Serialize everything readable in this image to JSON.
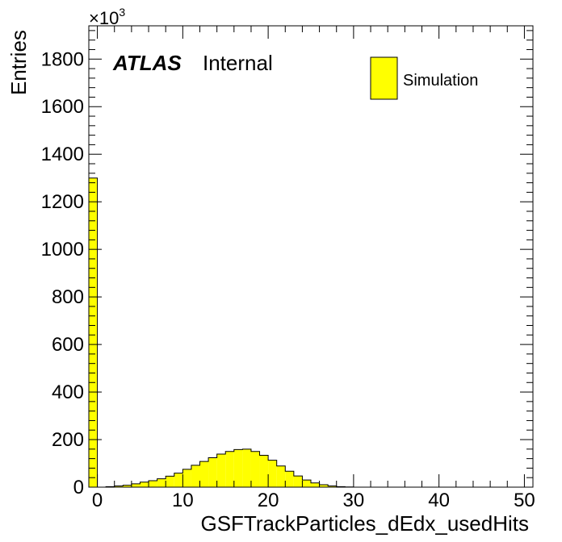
{
  "chart_data": {
    "type": "bar",
    "title": "",
    "xlabel": "GSFTrackParticles_dEdx_usedHits",
    "ylabel": "Entries",
    "y_multiplier_label": "×10",
    "y_multiplier_exponent": "3",
    "xlim": [
      -1,
      51
    ],
    "ylim": [
      0,
      1940
    ],
    "x_ticks": [
      0,
      10,
      20,
      30,
      40,
      50
    ],
    "y_ticks": [
      0,
      200,
      400,
      600,
      800,
      1000,
      1200,
      1400,
      1600,
      1800
    ],
    "grid": false,
    "legend_position": "top-right",
    "bin_width": 1,
    "bin_low_edges": [
      -1,
      0,
      1,
      2,
      3,
      4,
      5,
      6,
      7,
      8,
      9,
      10,
      11,
      12,
      13,
      14,
      15,
      16,
      17,
      18,
      19,
      20,
      21,
      22,
      23,
      24,
      25,
      26,
      27,
      28,
      29,
      30,
      31,
      32,
      33,
      34,
      35,
      36,
      37,
      38,
      39,
      40,
      41,
      42,
      43,
      44,
      45,
      46,
      47,
      48,
      49,
      50
    ],
    "series": [
      {
        "name": "Simulation",
        "color": "#ffff00",
        "values": [
          1300,
          0,
          2,
          5,
          8,
          14,
          21,
          27,
          35,
          46,
          59,
          75,
          92,
          108,
          124,
          139,
          150,
          158,
          160,
          150,
          134,
          113,
          89,
          67,
          47,
          30,
          18,
          10,
          5,
          2,
          1,
          0,
          0,
          0,
          0,
          0,
          0,
          0,
          0,
          0,
          0,
          0,
          0,
          0,
          0,
          0,
          0,
          0,
          0,
          0,
          0,
          0
        ]
      }
    ],
    "annotations": {
      "atlas": "ATLAS",
      "status": "Internal"
    }
  }
}
